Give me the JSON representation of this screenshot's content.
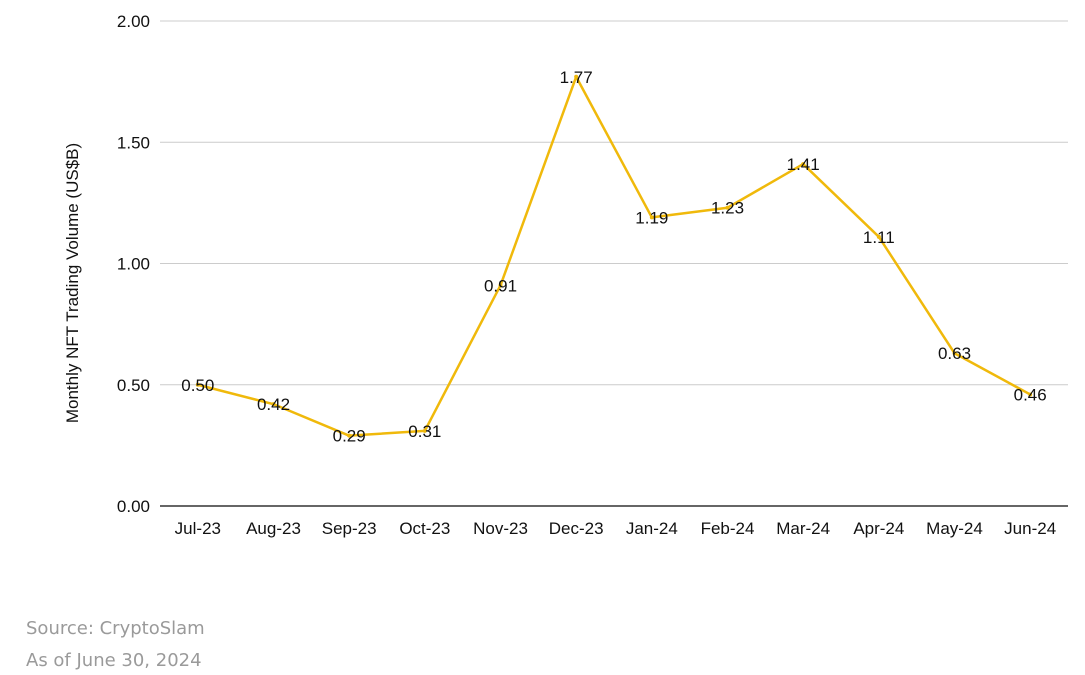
{
  "chart_data": {
    "type": "line",
    "categories": [
      "Jul-23",
      "Aug-23",
      "Sep-23",
      "Oct-23",
      "Nov-23",
      "Dec-23",
      "Jan-24",
      "Feb-24",
      "Mar-24",
      "Apr-24",
      "May-24",
      "Jun-24"
    ],
    "series": [
      {
        "values": [
          0.5,
          0.42,
          0.29,
          0.31,
          0.91,
          1.77,
          1.19,
          1.23,
          1.41,
          1.11,
          0.63,
          0.46
        ]
      }
    ],
    "data_labels": [
      "0.50",
      "0.42",
      "0.29",
      "0.31",
      "0.91",
      "1.77",
      "1.19",
      "1.23",
      "1.41",
      "1.11",
      "0.63",
      "0.46"
    ],
    "yticks": [
      "0.00",
      "0.50",
      "1.00",
      "1.50",
      "2.00"
    ],
    "ylabel": "Monthly NFT Trading Volume (US$B)",
    "ylim": [
      0,
      2
    ],
    "grid": true,
    "line_color": "#F0B90B",
    "grid_color": "#cccccc"
  },
  "footer": {
    "source": "Source: CryptoSlam",
    "as_of": "As of June 30, 2024"
  }
}
